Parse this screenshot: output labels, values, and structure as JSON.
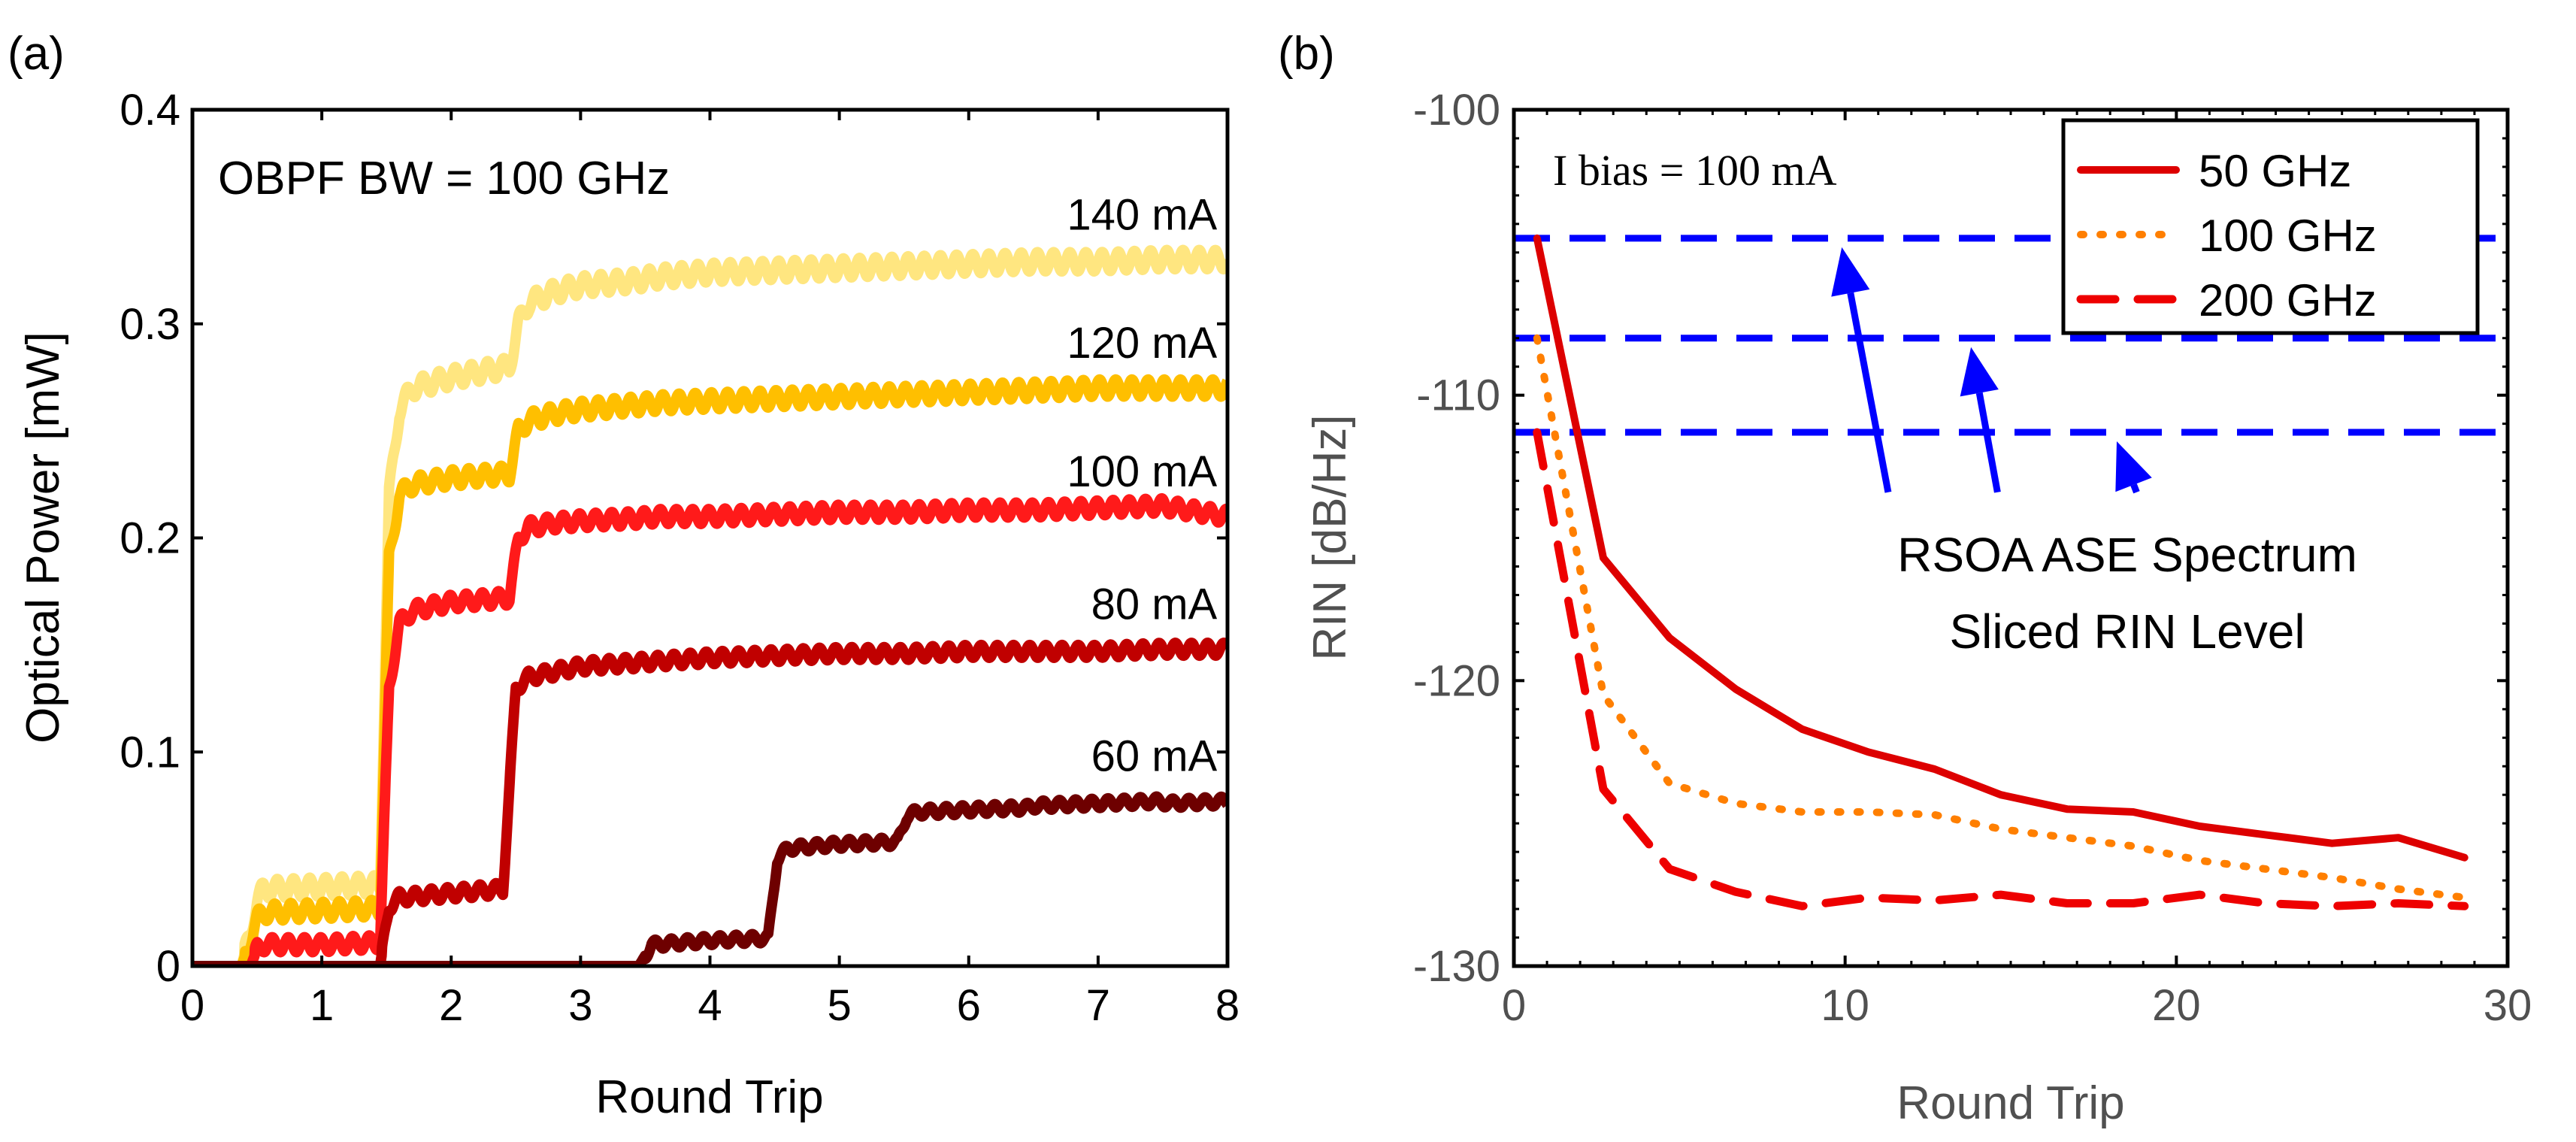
{
  "chart_data": [
    {
      "panel_label": "(a)",
      "type": "line",
      "xlabel": "Round Trip",
      "ylabel": "Optical Power [mW]",
      "xlim": [
        0,
        8
      ],
      "ylim": [
        0,
        0.4
      ],
      "xticks": [
        "0",
        "1",
        "2",
        "3",
        "4",
        "5",
        "6",
        "7",
        "8"
      ],
      "yticks": [
        "0",
        "0.1",
        "0.2",
        "0.3",
        "0.4"
      ],
      "annotation": "OBPF BW = 100 GHz",
      "series": [
        {
          "name": "140 mA",
          "color": "#FFE680",
          "x": [
            0,
            0.38,
            0.5,
            0.55,
            1.0,
            1.45,
            1.52,
            1.6,
            1.7,
            2.0,
            2.45,
            2.52,
            2.6,
            2.8,
            3.0,
            3.4,
            3.6,
            4.0,
            4.5,
            5.0,
            5.5,
            6.0,
            6.5,
            7.0,
            7.5,
            8.0
          ],
          "y": [
            0,
            0,
            0.03,
            0.036,
            0.037,
            0.038,
            0.22,
            0.26,
            0.27,
            0.275,
            0.28,
            0.3,
            0.31,
            0.315,
            0.318,
            0.32,
            0.322,
            0.324,
            0.325,
            0.326,
            0.327,
            0.328,
            0.329,
            0.329,
            0.33,
            0.33
          ]
        },
        {
          "name": "120 mA",
          "color": "#FFBF00",
          "x": [
            0,
            0.38,
            0.5,
            0.55,
            1.0,
            1.45,
            1.52,
            1.6,
            1.7,
            2.0,
            2.45,
            2.52,
            2.6,
            2.8,
            3.0,
            3.4,
            3.6,
            4.0,
            4.5,
            5.0,
            5.5,
            6.0,
            6.5,
            7.0,
            7.5,
            8.0
          ],
          "y": [
            0,
            0,
            0.022,
            0.025,
            0.026,
            0.027,
            0.19,
            0.22,
            0.225,
            0.228,
            0.23,
            0.25,
            0.255,
            0.258,
            0.26,
            0.262,
            0.263,
            0.264,
            0.265,
            0.266,
            0.267,
            0.268,
            0.269,
            0.27,
            0.27,
            0.27
          ]
        },
        {
          "name": "100 mA",
          "color": "#FF1A1A",
          "x": [
            0,
            0.45,
            0.5,
            0.55,
            1.0,
            1.45,
            1.52,
            1.6,
            1.7,
            2.0,
            2.45,
            2.52,
            2.6,
            2.8,
            3.0,
            3.4,
            3.6,
            4.0,
            4.5,
            5.0,
            5.5,
            6.0,
            6.5,
            7.0,
            7.5,
            8.0
          ],
          "y": [
            0,
            0,
            0.008,
            0.01,
            0.01,
            0.011,
            0.13,
            0.16,
            0.166,
            0.17,
            0.172,
            0.2,
            0.205,
            0.207,
            0.208,
            0.209,
            0.21,
            0.21,
            0.211,
            0.212,
            0.212,
            0.213,
            0.213,
            0.214,
            0.215,
            0.21
          ]
        },
        {
          "name": "80 mA",
          "color": "#C00000",
          "x": [
            0,
            1.45,
            1.52,
            1.6,
            2.0,
            2.4,
            2.5,
            2.6,
            3.0,
            3.5,
            4.0,
            4.5,
            5.0,
            5.5,
            6.0,
            6.5,
            7.0,
            7.5,
            8.0
          ],
          "y": [
            0,
            0,
            0.028,
            0.032,
            0.034,
            0.036,
            0.13,
            0.135,
            0.14,
            0.142,
            0.144,
            0.145,
            0.146,
            0.146,
            0.147,
            0.147,
            0.147,
            0.148,
            0.148
          ]
        },
        {
          "name": "60 mA",
          "color": "#6E0000",
          "x": [
            0,
            3.45,
            3.55,
            4.0,
            4.45,
            4.52,
            4.6,
            5.0,
            5.45,
            5.52,
            5.6,
            6.0,
            6.45,
            6.52,
            7.0,
            7.45,
            7.55,
            8.0
          ],
          "y": [
            0,
            0,
            0.01,
            0.012,
            0.013,
            0.05,
            0.055,
            0.057,
            0.058,
            0.07,
            0.072,
            0.073,
            0.074,
            0.075,
            0.076,
            0.077,
            0.076,
            0.077
          ]
        }
      ]
    },
    {
      "panel_label": "(b)",
      "type": "line",
      "xlabel": "Round Trip",
      "ylabel": "RIN [dB/Hz]",
      "xlim": [
        0,
        30
      ],
      "ylim": [
        -130,
        -100
      ],
      "xticks": [
        "0",
        "10",
        "20",
        "30"
      ],
      "yticks": [
        "-130",
        "-120",
        "-110",
        "-100"
      ],
      "annotation": "I bias = 100 mA",
      "text_annotation_lines": [
        "RSOA ASE Spectrum",
        "Sliced RIN Level"
      ],
      "reference_levels": [
        -104.5,
        -108,
        -111.3
      ],
      "reference_color": "#0000FF",
      "series": [
        {
          "name": "50 GHz",
          "style": "solid",
          "color": "#DD0000",
          "x": [
            0.7,
            2.7,
            4.7,
            6.7,
            8.7,
            10.7,
            12.7,
            14.7,
            16.7,
            18.7,
            20.7,
            22.7,
            24.7,
            26.7,
            28.7
          ],
          "y": [
            -104.5,
            -115.7,
            -118.5,
            -120.3,
            -121.7,
            -122.5,
            -123.1,
            -124.0,
            -124.5,
            -124.6,
            -125.1,
            -125.4,
            -125.7,
            -125.5,
            -126.2
          ]
        },
        {
          "name": "100 GHz",
          "style": "dotted",
          "color": "#FF7F00",
          "x": [
            0.7,
            2.7,
            4.7,
            6.7,
            8.7,
            10.7,
            12.7,
            14.7,
            16.7,
            18.7,
            20.7,
            22.7,
            24.7,
            26.7,
            28.7
          ],
          "y": [
            -108,
            -120.5,
            -123.6,
            -124.3,
            -124.6,
            -124.6,
            -124.7,
            -125.2,
            -125.5,
            -125.8,
            -126.3,
            -126.6,
            -126.9,
            -127.3,
            -127.6
          ]
        },
        {
          "name": "200 GHz",
          "style": "dashed",
          "color": "#EE0000",
          "x": [
            0.7,
            2.7,
            4.7,
            6.7,
            8.7,
            10.7,
            12.7,
            14.7,
            16.7,
            18.7,
            20.7,
            22.7,
            24.7,
            26.7,
            28.7
          ],
          "y": [
            -111.3,
            -123.8,
            -126.6,
            -127.4,
            -127.9,
            -127.6,
            -127.7,
            -127.5,
            -127.8,
            -127.8,
            -127.5,
            -127.8,
            -127.9,
            -127.8,
            -127.9
          ]
        }
      ]
    }
  ]
}
